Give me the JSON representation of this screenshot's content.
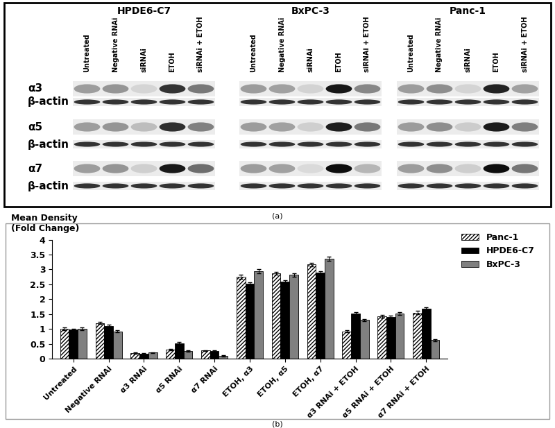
{
  "panel_labels": [
    "(a)",
    "(b)"
  ],
  "panel_a": {
    "groups": [
      "HPDE6-C7",
      "BxPC-3",
      "Panc-1"
    ],
    "lanes": [
      "Untreated",
      "Negative RNAi",
      "siRNAi",
      "ETOH",
      "siRNAi + ETOH"
    ],
    "rows": [
      "α3",
      "β-actin",
      "α5",
      "β-actin",
      "α7",
      "β-actin"
    ]
  },
  "chart_data": {
    "type": "bar",
    "y_label": "Mean Density\n(Fold Change)",
    "categories": [
      "Untreated",
      "Negative RNAi",
      "α3 RNAi",
      "α5 RNAi",
      "α7 RNAi",
      "ETOH, α3",
      "ETOH, α5",
      "ETOH, α7",
      "α3 RNAi + ETOH",
      "α5 RNAi + ETOH",
      "α7 RNAi + ETOH"
    ],
    "series": [
      {
        "name": "Panc-1",
        "color": "#ffffff",
        "values": [
          1.0,
          1.2,
          0.18,
          0.3,
          0.27,
          2.75,
          2.87,
          3.17,
          0.92,
          1.42,
          1.55
        ],
        "errors": [
          0.05,
          0.03,
          0.02,
          0.03,
          0.02,
          0.07,
          0.05,
          0.06,
          0.03,
          0.04,
          0.05
        ]
      },
      {
        "name": "HPDE6-C7",
        "color": "#000000",
        "values": [
          0.98,
          1.1,
          0.17,
          0.52,
          0.25,
          2.52,
          2.58,
          2.9,
          1.52,
          1.4,
          1.68
        ],
        "errors": [
          0.03,
          0.04,
          0.02,
          0.03,
          0.02,
          0.05,
          0.05,
          0.05,
          0.05,
          0.04,
          0.04
        ]
      },
      {
        "name": "BxPC-3",
        "color": "#808080",
        "values": [
          1.0,
          0.92,
          0.2,
          0.25,
          0.1,
          2.93,
          2.82,
          3.37,
          1.3,
          1.52,
          0.62
        ],
        "errors": [
          0.04,
          0.04,
          0.02,
          0.02,
          0.02,
          0.07,
          0.06,
          0.07,
          0.04,
          0.05,
          0.03
        ]
      }
    ],
    "ylim": [
      0,
      4
    ],
    "yticks": [
      0,
      0.5,
      1,
      1.5,
      2,
      2.5,
      3,
      3.5,
      4
    ],
    "grid": false,
    "legend": "upper right"
  }
}
